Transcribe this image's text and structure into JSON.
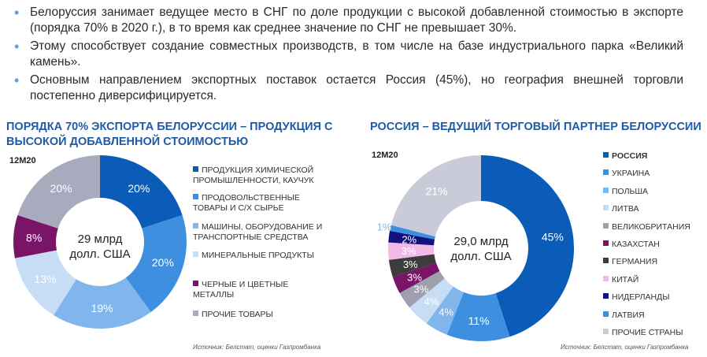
{
  "bullets": [
    "Белоруссия занимает ведущее место в СНГ по доле продукции с высокой добавленной стоимостью в экспорте (порядка 70% в 2020 г.), в то время как среднее значение по СНГ не превышает 30%.",
    "Этому способствует создание совместных производств, в том числе на базе индустриального парка «Великий камень».",
    "Основным направлением экспортных поставок остается Россия (45%), но география внешней торговли постепенно диверсифицируется."
  ],
  "chart_data": [
    {
      "type": "pie",
      "title": "ПОРЯДКА 70% ЭКСПОРТА БЕЛОРУССИИ – ПРОДУКЦИЯ С ВЫСОКОЙ ДОБАВЛЕННОЙ СТОИМОСТЬЮ",
      "period": "12M20",
      "center_line1": "29 млрд",
      "center_line2": "долл. США",
      "source": "Источник: Белстат, оценки Газпромбанка",
      "categories": [
        "ПРОДУКЦИЯ ХИМИЧЕСКОЙ ПРОМЫШЛЕННОСТИ, КАУЧУК",
        "ПРОДОВОЛЬСТВЕННЫЕ ТОВАРЫ И С/Х СЫРЬЕ",
        "МАШИНЫ, ОБОРУДОВАНИЕ И ТРАНСПОРТНЫЕ СРЕДСТВА",
        "МИНЕРАЛЬНЫЕ ПРОДУКТЫ",
        "ЧЕРНЫЕ И ЦВЕТНЫЕ МЕТАЛЛЫ",
        "ПРОЧИЕ ТОВАРЫ"
      ],
      "values": [
        20,
        20,
        19,
        13,
        8,
        20
      ],
      "labels": [
        "20%",
        "20%",
        "19%",
        "13%",
        "8%",
        "20%"
      ],
      "colors": [
        "#0b5cb8",
        "#3f8fe0",
        "#80b6ec",
        "#c6ddf5",
        "#7a1466",
        "#a8aabd"
      ]
    },
    {
      "type": "pie",
      "title": "РОССИЯ – ВЕДУЩИЙ ТОРГОВЫЙ ПАРТНЕР БЕЛОРУССИИ",
      "period": "12M20",
      "center_line1": "29,0 млрд",
      "center_line2": "долл. США",
      "source": "Источник: Белстат, оценки Газпромбанка",
      "categories": [
        "РОССИЯ",
        "УКРАИНА",
        "ПОЛЬША",
        "ЛИТВА",
        "ВЕЛИКОБРИТАНИЯ",
        "КАЗАХСТАН",
        "ГЕРМАНИЯ",
        "КИТАЙ",
        "НИДЕРЛАНДЫ",
        "ЛАТВИЯ",
        "ПРОЧИЕ СТРАНЫ"
      ],
      "values": [
        45,
        11,
        4,
        4,
        3,
        3,
        3,
        3,
        2,
        1,
        21
      ],
      "labels": [
        "45%",
        "11%",
        "4%",
        "4%",
        "3%",
        "3%",
        "3%",
        "3%",
        "2%",
        "1%",
        "21%"
      ],
      "colors": [
        "#0b5cb8",
        "#3f8fe0",
        "#80b6ec",
        "#c6ddf5",
        "#9fa0ae",
        "#7a1466",
        "#3c3c3c",
        "#f2b9e8",
        "#12127e",
        "#3f8fe0",
        "#c9cbd9"
      ]
    }
  ]
}
